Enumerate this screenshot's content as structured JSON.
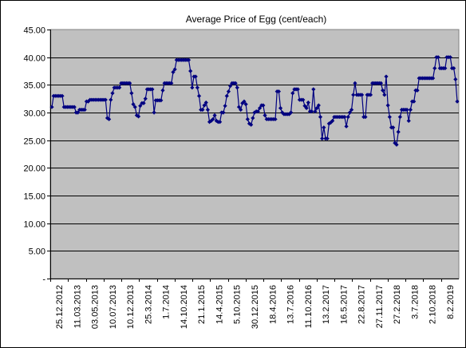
{
  "colors": {
    "plot_background": "#c0c0c0",
    "series": "#000080",
    "grid": "#000000"
  },
  "chart_data": {
    "type": "line",
    "title": "Average Price of Egg (cent/each)",
    "xlabel": "",
    "ylabel": "",
    "ylim": [
      0,
      45
    ],
    "y_ticks": [
      0,
      5,
      10,
      15,
      20,
      25,
      30,
      35,
      40,
      45
    ],
    "y_tick_labels": [
      "-",
      "5.00",
      "10.00",
      "15.00",
      "20.00",
      "25.00",
      "30.00",
      "35.00",
      "40.00",
      "45.00"
    ],
    "grid": true,
    "legend": "none",
    "x_tick_labels": [
      "25.12.2012",
      "11.03.2013",
      "03.05.2013",
      "10.07.2013",
      "10.12.2013",
      "25.3.2014",
      "1.7.2014",
      "14.10.2014",
      "21.1.2015",
      "14.4.2015",
      "5.10.2015",
      "30.12.2015",
      "18.4.2016",
      "13.7.2016",
      "11.10.2016",
      "13.2.2017",
      "16.5.2017",
      "22.8.2017",
      "27.11.2017",
      "27.2.2018",
      "3.7.2018",
      "2.10.2018",
      "8.2.2019"
    ],
    "series": [
      {
        "values": [
          31,
          33,
          33,
          33,
          33,
          33,
          33,
          31,
          31,
          31,
          31,
          31,
          31,
          31,
          30,
          30,
          30.5,
          30.5,
          30.5,
          30.5,
          32,
          32,
          32.3,
          32.3,
          32.3,
          32.3,
          32.3,
          32.3,
          32.3,
          32.3,
          32.3,
          32.3,
          29,
          28.8,
          32.3,
          33.5,
          34.5,
          34.5,
          34.5,
          34.5,
          35.3,
          35.3,
          35.3,
          35.3,
          35.3,
          35.3,
          33.5,
          31.5,
          31,
          29.5,
          29.3,
          31.2,
          31.7,
          31.7,
          32.5,
          34.2,
          34.2,
          34.2,
          34.2,
          30,
          32.2,
          32.2,
          32.2,
          32.2,
          34,
          35.3,
          35.3,
          35.3,
          35.3,
          35.3,
          37.3,
          37.8,
          39.5,
          39.5,
          39.5,
          39.5,
          39.5,
          39.5,
          39.5,
          39.5,
          37.5,
          34.5,
          36.5,
          36.5,
          34.5,
          33,
          30.5,
          30.5,
          31.3,
          31.8,
          30.5,
          28.3,
          28.5,
          28.8,
          29.5,
          28.5,
          28.3,
          28.3,
          30,
          30,
          31.2,
          33,
          33.8,
          34.8,
          35.3,
          35.3,
          35.3,
          34.5,
          31,
          30.5,
          31.7,
          32,
          31.5,
          28.8,
          28,
          27.8,
          29,
          30,
          30.2,
          30.2,
          30.8,
          31.3,
          31.3,
          29.5,
          28.8,
          28.8,
          28.8,
          28.8,
          28.8,
          28.8,
          33.8,
          33.8,
          30.8,
          30,
          29.7,
          29.7,
          29.7,
          29.7,
          30,
          33.5,
          34.2,
          34.2,
          34.2,
          32.3,
          32.3,
          32.3,
          31.2,
          30.8,
          31.8,
          30.2,
          30.2,
          34.2,
          30.2,
          30.8,
          31.3,
          29.2,
          25.3,
          27.3,
          25.3,
          25.3,
          28,
          28.2,
          28.5,
          29.2,
          29.2,
          29.2,
          29.2,
          29.2,
          29.2,
          29.2,
          27.5,
          29.2,
          30,
          30.5,
          33.2,
          35.3,
          33.2,
          33.2,
          33.2,
          33.2,
          29.2,
          29.2,
          33.2,
          33.2,
          33.2,
          35.3,
          35.3,
          35.3,
          35.3,
          35.3,
          35.3,
          34,
          33.2,
          36.5,
          31.3,
          29.2,
          27.3,
          27.3,
          24.5,
          24.2,
          26.5,
          29.2,
          30.5,
          30.5,
          30.5,
          30.5,
          28.5,
          30.5,
          32,
          32,
          34,
          34,
          36.2,
          36.2,
          36.2,
          36.2,
          36.2,
          36.2,
          36.2,
          36.2,
          36.2,
          38,
          40,
          40,
          38,
          38,
          38,
          38,
          40,
          40,
          40,
          38,
          38,
          36,
          32
        ]
      }
    ]
  }
}
